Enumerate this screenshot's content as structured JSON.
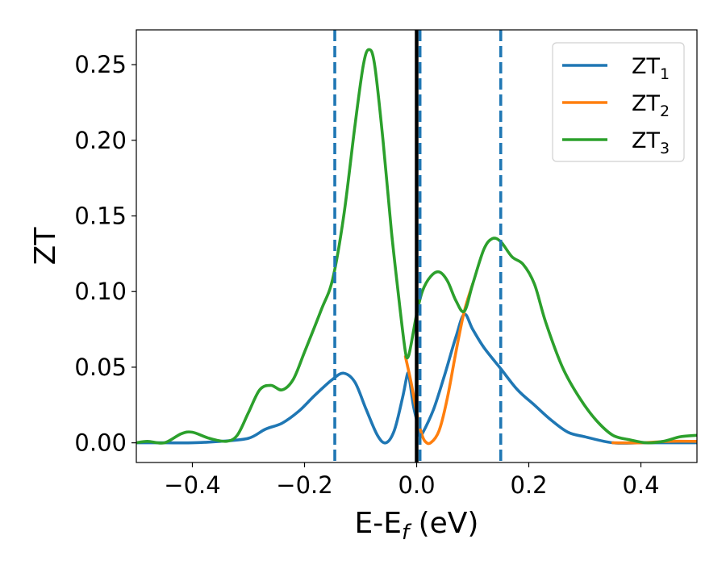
{
  "chart_data": {
    "type": "line",
    "xlabel": "E-E",
    "xlabel_sub": "f",
    "xlabel_unit": " (eV)",
    "ylabel": "ZT",
    "xlim": [
      -0.5,
      0.5
    ],
    "ylim": [
      -0.013,
      0.273
    ],
    "xticks": [
      -0.4,
      -0.2,
      0.0,
      0.2,
      0.4
    ],
    "xtick_labels": [
      "−0.4",
      "−0.2",
      "0.0",
      "0.2",
      "0.4"
    ],
    "yticks": [
      0.0,
      0.05,
      0.1,
      0.15,
      0.2,
      0.25
    ],
    "ytick_labels": [
      "0.00",
      "0.05",
      "0.10",
      "0.15",
      "0.20",
      "0.25"
    ],
    "grid": false,
    "legend_position": "top-right",
    "vlines": [
      {
        "x": -0.146,
        "style": "dashed",
        "color": "#1f77b4"
      },
      {
        "x": 0.0,
        "style": "solid",
        "color": "#000000"
      },
      {
        "x": 0.006,
        "style": "dashed",
        "color": "#1f77b4"
      },
      {
        "x": 0.15,
        "style": "dashed",
        "color": "#1f77b4"
      }
    ],
    "series": [
      {
        "name": "ZT",
        "name_sub": "1",
        "color": "#1f77b4",
        "points": [
          [
            -0.5,
            0.0
          ],
          [
            -0.45,
            0.0
          ],
          [
            -0.4,
            0.0
          ],
          [
            -0.35,
            0.001
          ],
          [
            -0.3,
            0.003
          ],
          [
            -0.27,
            0.009
          ],
          [
            -0.24,
            0.013
          ],
          [
            -0.21,
            0.021
          ],
          [
            -0.18,
            0.032
          ],
          [
            -0.15,
            0.042
          ],
          [
            -0.13,
            0.046
          ],
          [
            -0.11,
            0.04
          ],
          [
            -0.09,
            0.022
          ],
          [
            -0.07,
            0.005
          ],
          [
            -0.055,
            0.0
          ],
          [
            -0.04,
            0.008
          ],
          [
            -0.025,
            0.03
          ],
          [
            -0.016,
            0.046
          ],
          [
            -0.012,
            0.04
          ],
          [
            -0.006,
            0.025
          ],
          [
            0.0,
            0.015
          ],
          [
            0.005,
            0.005
          ],
          [
            0.01,
            0.006
          ],
          [
            0.03,
            0.022
          ],
          [
            0.05,
            0.045
          ],
          [
            0.07,
            0.07
          ],
          [
            0.085,
            0.085
          ],
          [
            0.1,
            0.075
          ],
          [
            0.12,
            0.063
          ],
          [
            0.15,
            0.049
          ],
          [
            0.18,
            0.035
          ],
          [
            0.21,
            0.025
          ],
          [
            0.24,
            0.015
          ],
          [
            0.27,
            0.007
          ],
          [
            0.3,
            0.004
          ],
          [
            0.35,
            0.0
          ],
          [
            0.4,
            0.0
          ],
          [
            0.45,
            0.0
          ],
          [
            0.5,
            0.0
          ]
        ]
      },
      {
        "name": "ZT",
        "name_sub": "2",
        "color": "#ff7f0e",
        "points": [
          [
            -0.02,
            0.057
          ],
          [
            -0.01,
            0.04
          ],
          [
            0.0,
            0.02
          ],
          [
            0.008,
            0.007
          ],
          [
            0.015,
            0.001
          ],
          [
            0.025,
            0.0
          ],
          [
            0.04,
            0.008
          ],
          [
            0.055,
            0.03
          ],
          [
            0.07,
            0.06
          ],
          [
            0.085,
            0.087
          ],
          [
            0.1,
            0.105
          ],
          [
            0.35,
            0.0
          ],
          [
            0.4,
            0.0
          ],
          [
            0.45,
            0.001
          ],
          [
            0.5,
            0.001
          ]
        ]
      },
      {
        "name": "ZT",
        "name_sub": "3",
        "color": "#2ca02c",
        "points": [
          [
            -0.5,
            0.0
          ],
          [
            -0.48,
            0.001
          ],
          [
            -0.45,
            0.0
          ],
          [
            -0.42,
            0.006
          ],
          [
            -0.4,
            0.007
          ],
          [
            -0.37,
            0.003
          ],
          [
            -0.34,
            0.001
          ],
          [
            -0.32,
            0.005
          ],
          [
            -0.3,
            0.02
          ],
          [
            -0.28,
            0.035
          ],
          [
            -0.26,
            0.038
          ],
          [
            -0.24,
            0.035
          ],
          [
            -0.22,
            0.042
          ],
          [
            -0.2,
            0.06
          ],
          [
            -0.17,
            0.088
          ],
          [
            -0.15,
            0.108
          ],
          [
            -0.13,
            0.15
          ],
          [
            -0.11,
            0.21
          ],
          [
            -0.095,
            0.25
          ],
          [
            -0.085,
            0.26
          ],
          [
            -0.075,
            0.25
          ],
          [
            -0.06,
            0.2
          ],
          [
            -0.045,
            0.14
          ],
          [
            -0.03,
            0.09
          ],
          [
            -0.02,
            0.06
          ],
          [
            -0.015,
            0.057
          ],
          [
            -0.01,
            0.065
          ],
          [
            0.0,
            0.085
          ],
          [
            0.01,
            0.1
          ],
          [
            0.025,
            0.11
          ],
          [
            0.04,
            0.113
          ],
          [
            0.055,
            0.107
          ],
          [
            0.07,
            0.094
          ],
          [
            0.085,
            0.087
          ],
          [
            0.1,
            0.105
          ],
          [
            0.12,
            0.128
          ],
          [
            0.135,
            0.135
          ],
          [
            0.15,
            0.133
          ],
          [
            0.17,
            0.123
          ],
          [
            0.19,
            0.118
          ],
          [
            0.21,
            0.105
          ],
          [
            0.23,
            0.08
          ],
          [
            0.26,
            0.05
          ],
          [
            0.29,
            0.03
          ],
          [
            0.32,
            0.015
          ],
          [
            0.35,
            0.005
          ],
          [
            0.38,
            0.002
          ],
          [
            0.41,
            0.0
          ],
          [
            0.44,
            0.001
          ],
          [
            0.47,
            0.004
          ],
          [
            0.5,
            0.005
          ]
        ]
      }
    ]
  }
}
